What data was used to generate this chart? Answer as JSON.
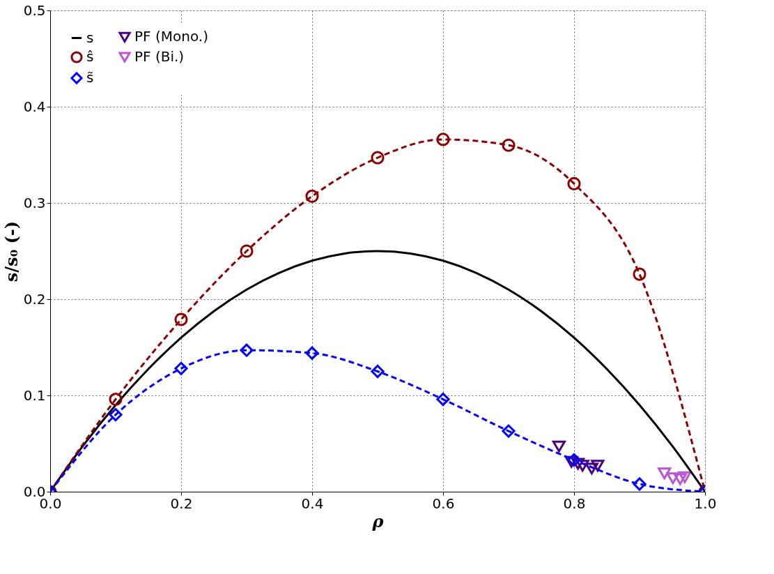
{
  "chart_data": {
    "type": "line",
    "xlabel": "ρ",
    "ylabel": "s/s₀ (-)",
    "xlim": [
      0,
      1
    ],
    "ylim": [
      0,
      0.5
    ],
    "xticks": [
      {
        "value": 0,
        "label": "0.0"
      },
      0.2,
      0.4,
      0.6,
      0.8,
      {
        "value": 1,
        "label": "1.0"
      }
    ],
    "yticks": [
      {
        "value": 0,
        "label": "0.0"
      },
      0.1,
      0.2,
      0.3,
      0.4,
      0.5
    ],
    "grid": true,
    "legend": "top left",
    "series": [
      {
        "name": "s",
        "color": "#000000",
        "marker": "none",
        "line_style": "solid",
        "x": [
          0,
          0.05,
          0.1,
          0.15,
          0.2,
          0.25,
          0.3,
          0.35,
          0.4,
          0.45,
          0.5,
          0.55,
          0.6,
          0.65,
          0.7,
          0.75,
          0.8,
          0.85,
          0.9,
          0.95,
          1.0
        ],
        "values": [
          0,
          0.0475,
          0.09,
          0.1275,
          0.16,
          0.1875,
          0.21,
          0.2275,
          0.24,
          0.2475,
          0.25,
          0.2475,
          0.24,
          0.2275,
          0.21,
          0.1875,
          0.16,
          0.1275,
          0.09,
          0.0475,
          0
        ]
      },
      {
        "name": "ŝ",
        "color": "#8b0000",
        "marker": "circle",
        "line_style": "dashed",
        "x": [
          0,
          0.1,
          0.2,
          0.3,
          0.4,
          0.5,
          0.6,
          0.7,
          0.8,
          0.9,
          1.0
        ],
        "values": [
          0,
          0.096,
          0.179,
          0.25,
          0.307,
          0.347,
          0.366,
          0.36,
          0.32,
          0.226,
          0
        ]
      },
      {
        "name": "s̃",
        "color": "#0000ff",
        "marker": "diamond",
        "line_style": "dashed",
        "x": [
          0,
          0.1,
          0.2,
          0.3,
          0.4,
          0.5,
          0.6,
          0.7,
          0.8,
          0.9,
          1.0
        ],
        "values": [
          0,
          0.08,
          0.128,
          0.147,
          0.144,
          0.125,
          0.096,
          0.063,
          0.033,
          0.008,
          0
        ]
      },
      {
        "name": "PF (Mono.)",
        "type": "scatter",
        "color": "#4b0082",
        "marker": "triangle",
        "x": [
          0.777,
          0.796,
          0.806,
          0.813,
          0.827,
          0.836
        ],
        "values": [
          0.047,
          0.031,
          0.029,
          0.027,
          0.024,
          0.027
        ]
      },
      {
        "name": "PF (Bi.)",
        "type": "scatter",
        "color": "#ba55d3",
        "marker": "triangle",
        "x": [
          0.938,
          0.951,
          0.962,
          0.969
        ],
        "values": [
          0.019,
          0.014,
          0.013,
          0.015
        ]
      }
    ]
  }
}
